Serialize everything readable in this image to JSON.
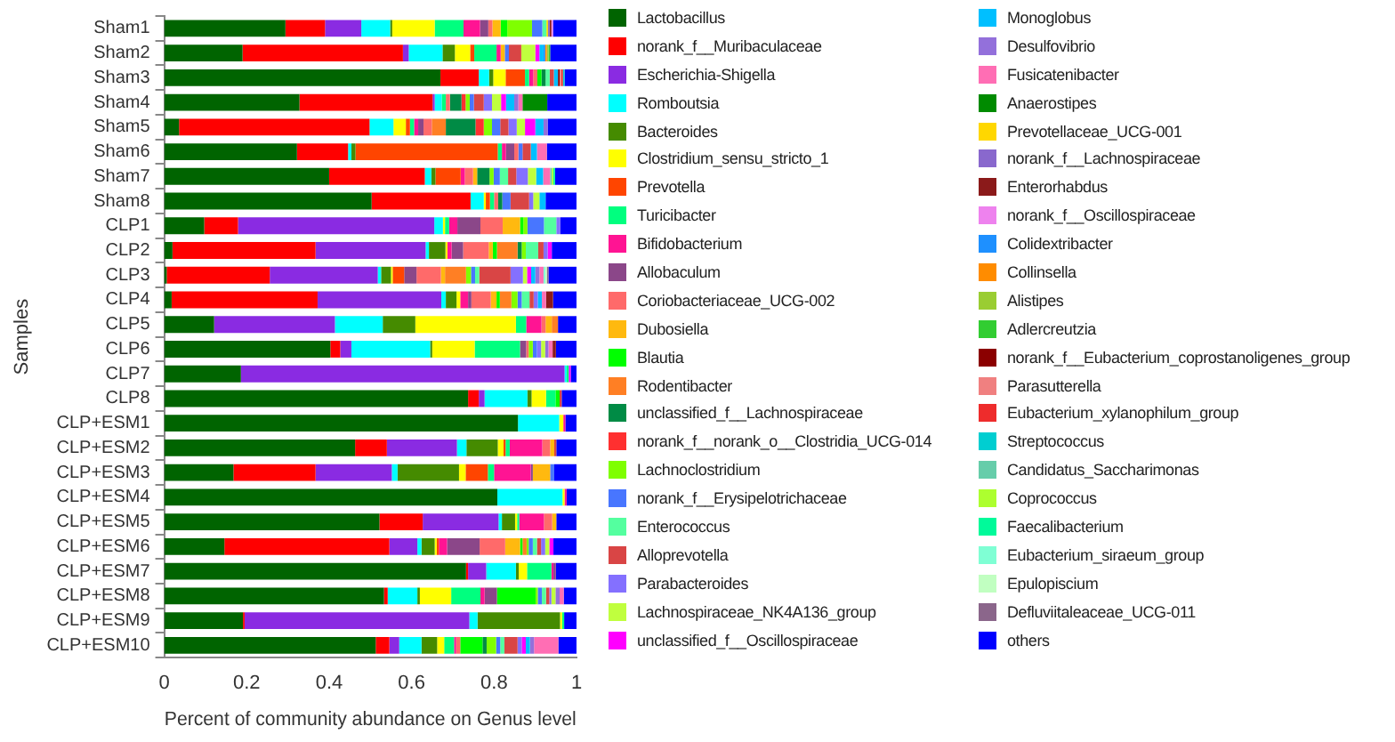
{
  "chart_data": {
    "type": "bar",
    "orientation": "horizontal",
    "stacked": true,
    "xlabel": "Percent of community abundance on Genus level",
    "ylabel": "Samples",
    "xlim": [
      0,
      1
    ],
    "xticks": [
      0,
      0.2,
      0.4,
      0.6,
      0.8,
      1
    ],
    "grid": false,
    "legend": "right",
    "categories": [
      "Sham1",
      "Sham2",
      "Sham3",
      "Sham4",
      "Sham5",
      "Sham6",
      "Sham7",
      "Sham8",
      "CLP1",
      "CLP2",
      "CLP3",
      "CLP4",
      "CLP5",
      "CLP6",
      "CLP7",
      "CLP8",
      "CLP+ESM1",
      "CLP+ESM2",
      "CLP+ESM3",
      "CLP+ESM4",
      "CLP+ESM5",
      "CLP+ESM6",
      "CLP+ESM7",
      "CLP+ESM8",
      "CLP+ESM9",
      "CLP+ESM10"
    ],
    "series": [
      {
        "name": "Lactobacillus",
        "color": "#006400",
        "values": [
          0.294,
          0.19,
          0.67,
          0.328,
          0.036,
          0.322,
          0.4,
          0.503,
          0.097,
          0.02,
          0.006,
          0.018,
          0.121,
          0.403,
          0.186,
          0.737,
          0.858,
          0.463,
          0.168,
          0.808,
          0.522,
          0.146,
          0.732,
          0.533,
          0.191,
          0.513
        ]
      },
      {
        "name": "norank_f__Muribaculaceae",
        "color": "#ff0000",
        "values": [
          0.096,
          0.389,
          0.093,
          0.323,
          0.462,
          0.124,
          0.232,
          0.24,
          0.082,
          0.347,
          0.25,
          0.354,
          0,
          0.024,
          0,
          0.026,
          0,
          0.077,
          0.199,
          0,
          0.105,
          0.4,
          0.005,
          0.009,
          0.004,
          0.033
        ]
      },
      {
        "name": "Escherichia-Shigella",
        "color": "#8a2be2",
        "values": [
          0.088,
          0.014,
          0,
          0.005,
          0,
          0,
          0,
          0,
          0.476,
          0.267,
          0.262,
          0.3,
          0.293,
          0.027,
          0.785,
          0.014,
          0,
          0.17,
          0.185,
          0,
          0.184,
          0.068,
          0.044,
          0,
          0.545,
          0.024
        ]
      },
      {
        "name": "Romboutsia",
        "color": "#00ffff",
        "values": [
          0.07,
          0.082,
          0.025,
          0.017,
          0.058,
          0.008,
          0.016,
          0.032,
          0.021,
          0.008,
          0.008,
          0.011,
          0.116,
          0.191,
          0.005,
          0.104,
          0.1,
          0.023,
          0.014,
          0.158,
          0.008,
          0.01,
          0.072,
          0.072,
          0.02,
          0.054
        ]
      },
      {
        "name": "Bacteroides",
        "color": "#458b00",
        "values": [
          0.005,
          0.03,
          0.01,
          0,
          0,
          0.01,
          0.01,
          0,
          0,
          0.04,
          0.024,
          0.026,
          0.079,
          0.005,
          0,
          0.01,
          0,
          0.076,
          0.149,
          0,
          0.032,
          0.032,
          0.007,
          0.006,
          0.2,
          0.038
        ]
      },
      {
        "name": "Clostridium_sensu_stricto_1",
        "color": "#ffff00",
        "values": [
          0.103,
          0.037,
          0.03,
          0,
          0.03,
          0,
          0,
          0.005,
          0.005,
          0.005,
          0.004,
          0.009,
          0.244,
          0.103,
          0,
          0.035,
          0.01,
          0.014,
          0.016,
          0.005,
          0.005,
          0.005,
          0.02,
          0.076,
          0.005,
          0.017
        ]
      },
      {
        "name": "Prevotella",
        "color": "#ff4500",
        "values": [
          0,
          0.01,
          0.047,
          0,
          0.01,
          0.345,
          0.061,
          0.01,
          0,
          0,
          0.028,
          0,
          0,
          0,
          0,
          0,
          0,
          0.005,
          0.054,
          0,
          0,
          0.005,
          0,
          0,
          0,
          0
        ]
      },
      {
        "name": "Turicibacter",
        "color": "#00ff7f",
        "values": [
          0.07,
          0.054,
          0.01,
          0.01,
          0.01,
          0.01,
          0,
          0.01,
          0.01,
          0,
          0,
          0,
          0.025,
          0.11,
          0.005,
          0.023,
          0,
          0.01,
          0.015,
          0,
          0.005,
          0,
          0.059,
          0.071,
          0.005,
          0.024
        ]
      },
      {
        "name": "Bifidobacterium",
        "color": "#ff1493",
        "values": [
          0.04,
          0.01,
          0.01,
          0,
          0.01,
          0.01,
          0.01,
          0,
          0.02,
          0.01,
          0,
          0.019,
          0.037,
          0,
          0,
          0,
          0.005,
          0.079,
          0.089,
          0.005,
          0.06,
          0.02,
          0.005,
          0.01,
          0,
          0.005
        ]
      },
      {
        "name": "Allobaculum",
        "color": "#8b4789",
        "values": [
          0.02,
          0,
          0,
          0,
          0.013,
          0.02,
          0,
          0,
          0.056,
          0.028,
          0.03,
          0.008,
          0,
          0.015,
          0,
          0,
          0,
          0,
          0.005,
          0,
          0,
          0.079,
          0.006,
          0.03,
          0,
          0
        ]
      },
      {
        "name": "Coriobacteriaceae_UCG-002",
        "color": "#ff6a6a",
        "values": [
          0.01,
          0,
          0.01,
          0.01,
          0.02,
          0.01,
          0.02,
          0.01,
          0.054,
          0.062,
          0.059,
          0.047,
          0.01,
          0.006,
          0,
          0,
          0,
          0.019,
          0,
          0,
          0.02,
          0.062,
          0,
          0,
          0,
          0.01
        ]
      },
      {
        "name": "Dubosiella",
        "color": "#ffb90f",
        "values": [
          0.02,
          0.01,
          0,
          0,
          0,
          0,
          0.01,
          0,
          0.042,
          0.01,
          0.01,
          0.014,
          0.015,
          0,
          0,
          0,
          0,
          0.01,
          0.042,
          0,
          0.01,
          0.036,
          0,
          0,
          0,
          0
        ]
      },
      {
        "name": "Blautia",
        "color": "#00ff00",
        "values": [
          0.016,
          0,
          0.01,
          0,
          0,
          0,
          0,
          0,
          0.008,
          0.01,
          0,
          0.008,
          0,
          0,
          0,
          0.01,
          0,
          0,
          0,
          0,
          0,
          0.006,
          0,
          0.094,
          0,
          0.054
        ]
      },
      {
        "name": "Rodentibacter",
        "color": "#ff7f24",
        "values": [
          0,
          0,
          0,
          0,
          0.034,
          0,
          0,
          0,
          0,
          0.05,
          0.051,
          0.028,
          0.015,
          0,
          0,
          0,
          0,
          0,
          0,
          0,
          0,
          0.01,
          0,
          0,
          0,
          0
        ]
      },
      {
        "name": "unclassified_f__Lachnospiraceae",
        "color": "#008b45",
        "values": [
          0,
          0,
          0.01,
          0.028,
          0.072,
          0,
          0.03,
          0.01,
          0,
          0.01,
          0,
          0,
          0,
          0,
          0,
          0,
          0,
          0,
          0,
          0,
          0,
          0,
          0,
          0,
          0,
          0.01
        ]
      },
      {
        "name": "norank_f__norank_o__Clostridia_UCG-014",
        "color": "#ff3030",
        "values": [
          0,
          0,
          0,
          0.01,
          0.02,
          0,
          0,
          0,
          0,
          0,
          0,
          0,
          0,
          0,
          0,
          0,
          0,
          0,
          0,
          0,
          0,
          0,
          0,
          0,
          0,
          0
        ]
      },
      {
        "name": "Lachnoclostridium",
        "color": "#7fff00",
        "values": [
          0.06,
          0,
          0,
          0.01,
          0.02,
          0,
          0.01,
          0,
          0.01,
          0.01,
          0.012,
          0.015,
          0,
          0.01,
          0,
          0,
          0,
          0,
          0,
          0,
          0,
          0.005,
          0,
          0.005,
          0,
          0.023
        ]
      },
      {
        "name": "norank_f__Erysipelotrichaceae",
        "color": "#4876ff",
        "values": [
          0.025,
          0.01,
          0,
          0.01,
          0.02,
          0.01,
          0.015,
          0.02,
          0.04,
          0,
          0.01,
          0.01,
          0,
          0.01,
          0,
          0,
          0,
          0,
          0.01,
          0,
          0,
          0.01,
          0,
          0.01,
          0,
          0.01
        ]
      },
      {
        "name": "Enterococcus",
        "color": "#54ff9f",
        "values": [
          0.01,
          0,
          0.01,
          0,
          0,
          0,
          0.02,
          0,
          0.03,
          0.03,
          0.01,
          0.019,
          0,
          0,
          0,
          0,
          0,
          0,
          0,
          0,
          0,
          0.01,
          0,
          0.01,
          0,
          0.01
        ]
      },
      {
        "name": "Alloprevotella",
        "color": "#d94545",
        "values": [
          0,
          0.03,
          0.01,
          0.024,
          0.02,
          0.02,
          0.02,
          0.045,
          0,
          0.013,
          0.076,
          0.01,
          0,
          0,
          0,
          0.005,
          0,
          0.005,
          0,
          0,
          0,
          0.01,
          0,
          0.008,
          0,
          0.032
        ]
      },
      {
        "name": "Parabacteroides",
        "color": "#8470ff",
        "values": [
          0,
          0,
          0,
          0.02,
          0.02,
          0,
          0.028,
          0.01,
          0.01,
          0.01,
          0.03,
          0.01,
          0,
          0.01,
          0,
          0,
          0,
          0,
          0,
          0,
          0,
          0.01,
          0,
          0.005,
          0,
          0.01
        ]
      },
      {
        "name": "Lachnospiraceae_NK4A136_group",
        "color": "#c0ff3e",
        "values": [
          0,
          0.034,
          0,
          0.022,
          0.02,
          0,
          0.02,
          0.015,
          0,
          0,
          0.01,
          0,
          0,
          0.01,
          0,
          0,
          0,
          0,
          0,
          0,
          0,
          0.01,
          0,
          0.01,
          0,
          0
        ]
      },
      {
        "name": "unclassified_f__Oscillospiraceae",
        "color": "#ff00ff",
        "values": [
          0,
          0.01,
          0,
          0.012,
          0.025,
          0,
          0,
          0,
          0,
          0.01,
          0.01,
          0,
          0,
          0,
          0.005,
          0,
          0,
          0,
          0,
          0,
          0,
          0.01,
          0,
          0,
          0,
          0.01
        ]
      },
      {
        "name": "Monoglobus",
        "color": "#00bfff",
        "values": [
          0,
          0.01,
          0.01,
          0.02,
          0.02,
          0.015,
          0.017,
          0.015,
          0,
          0,
          0.01,
          0.01,
          0,
          0,
          0,
          0,
          0,
          0,
          0,
          0,
          0,
          0,
          0,
          0,
          0,
          0.01
        ]
      },
      {
        "name": "Desulfovibrio",
        "color": "#9370db",
        "values": [
          0,
          0,
          0,
          0.01,
          0.01,
          0,
          0,
          0,
          0,
          0,
          0.01,
          0,
          0,
          0.008,
          0,
          0,
          0,
          0,
          0,
          0,
          0,
          0,
          0,
          0.01,
          0,
          0.01
        ]
      },
      {
        "name": "Fusicatenibacter",
        "color": "#ff6eb4",
        "values": [
          0,
          0,
          0,
          0.01,
          0,
          0.024,
          0.017,
          0,
          0,
          0,
          0.01,
          0.01,
          0,
          0.01,
          0,
          0,
          0,
          0,
          0,
          0,
          0,
          0,
          0,
          0.01,
          0,
          0.059
        ]
      },
      {
        "name": "Anaerostipes",
        "color": "#008b00",
        "values": [
          0,
          0,
          0,
          0.06,
          0,
          0,
          0,
          0,
          0,
          0,
          0,
          0,
          0,
          0,
          0,
          0,
          0,
          0,
          0,
          0,
          0,
          0,
          0,
          0,
          0,
          0
        ]
      },
      {
        "name": "Prevotellaceae_UCG-001",
        "color": "#ffd700",
        "values": [
          0.004,
          0,
          0,
          0,
          0,
          0,
          0,
          0,
          0,
          0,
          0,
          0,
          0,
          0,
          0,
          0,
          0,
          0,
          0,
          0,
          0,
          0,
          0,
          0,
          0,
          0
        ]
      },
      {
        "name": "norank_f__Lachnospiraceae",
        "color": "#8968cd",
        "values": [
          0.004,
          0,
          0,
          0,
          0,
          0,
          0,
          0,
          0,
          0,
          0,
          0,
          0,
          0,
          0,
          0,
          0,
          0,
          0,
          0,
          0,
          0,
          0,
          0,
          0,
          0
        ]
      },
      {
        "name": "Enterorhabdus",
        "color": "#8b1a1a",
        "values": [
          0.004,
          0,
          0,
          0,
          0,
          0,
          0,
          0,
          0,
          0,
          0,
          0.017,
          0,
          0.008,
          0,
          0,
          0,
          0,
          0,
          0,
          0,
          0,
          0,
          0,
          0,
          0
        ]
      },
      {
        "name": "norank_f__Oscillospiraceae",
        "color": "#ee82ee",
        "values": [
          0.004,
          0,
          0,
          0,
          0,
          0,
          0,
          0,
          0,
          0,
          0,
          0,
          0,
          0,
          0,
          0,
          0,
          0,
          0,
          0,
          0,
          0,
          0,
          0,
          0,
          0
        ]
      },
      {
        "name": "Colidextribacter",
        "color": "#1e90ff",
        "values": [
          0,
          0.004,
          0,
          0,
          0,
          0,
          0,
          0,
          0,
          0,
          0,
          0,
          0,
          0,
          0,
          0,
          0,
          0,
          0,
          0,
          0,
          0,
          0,
          0,
          0,
          0
        ]
      },
      {
        "name": "Collinsella",
        "color": "#ff8c00",
        "values": [
          0,
          0.004,
          0,
          0,
          0,
          0,
          0,
          0,
          0,
          0,
          0,
          0,
          0,
          0,
          0,
          0,
          0,
          0,
          0,
          0,
          0,
          0,
          0,
          0,
          0,
          0
        ]
      },
      {
        "name": "Alistipes",
        "color": "#9acd32",
        "values": [
          0,
          0.004,
          0,
          0,
          0,
          0,
          0,
          0,
          0,
          0,
          0,
          0,
          0,
          0,
          0,
          0,
          0,
          0,
          0,
          0,
          0,
          0,
          0,
          0,
          0,
          0
        ]
      },
      {
        "name": "Adlercreutzia",
        "color": "#32cd32",
        "values": [
          0,
          0.004,
          0,
          0,
          0,
          0,
          0,
          0,
          0,
          0,
          0,
          0,
          0,
          0,
          0,
          0,
          0,
          0,
          0,
          0,
          0,
          0,
          0,
          0,
          0,
          0
        ]
      },
      {
        "name": "norank_f__Eubacterium_coprostanoligenes_group",
        "color": "#8b0000",
        "values": [
          0,
          0,
          0.004,
          0,
          0,
          0,
          0,
          0,
          0,
          0,
          0,
          0,
          0,
          0,
          0,
          0,
          0,
          0,
          0,
          0,
          0,
          0,
          0,
          0,
          0,
          0
        ]
      },
      {
        "name": "Parasutterella",
        "color": "#f08080",
        "values": [
          0,
          0,
          0.004,
          0,
          0,
          0,
          0,
          0,
          0,
          0,
          0,
          0,
          0,
          0,
          0,
          0,
          0,
          0,
          0,
          0,
          0,
          0,
          0,
          0,
          0,
          0
        ]
      },
      {
        "name": "Eubacterium_xylanophilum_group",
        "color": "#ee2c2c",
        "values": [
          0,
          0,
          0.004,
          0,
          0,
          0,
          0,
          0,
          0,
          0,
          0,
          0,
          0,
          0,
          0,
          0,
          0,
          0,
          0,
          0,
          0,
          0,
          0,
          0,
          0,
          0
        ]
      },
      {
        "name": "Streptococcus",
        "color": "#00ced1",
        "values": [
          0,
          0,
          0.004,
          0,
          0,
          0,
          0,
          0,
          0,
          0,
          0,
          0,
          0,
          0,
          0,
          0,
          0,
          0,
          0,
          0,
          0,
          0,
          0,
          0,
          0,
          0
        ]
      },
      {
        "name": "Candidatus_Saccharimonas",
        "color": "#66cdaa",
        "values": [
          0,
          0,
          0,
          0,
          0,
          0,
          0.004,
          0,
          0,
          0,
          0,
          0,
          0,
          0,
          0,
          0,
          0,
          0,
          0,
          0,
          0,
          0,
          0,
          0,
          0,
          0
        ]
      },
      {
        "name": "Coprococcus",
        "color": "#adff2f",
        "values": [
          0,
          0,
          0,
          0,
          0,
          0,
          0.004,
          0,
          0,
          0,
          0,
          0,
          0,
          0,
          0,
          0,
          0,
          0,
          0,
          0,
          0,
          0,
          0,
          0,
          0,
          0
        ]
      },
      {
        "name": "Faecalibacterium",
        "color": "#00fa9a",
        "values": [
          0,
          0,
          0,
          0,
          0,
          0,
          0.004,
          0,
          0,
          0,
          0,
          0,
          0,
          0,
          0,
          0,
          0,
          0,
          0,
          0,
          0,
          0,
          0,
          0,
          0,
          0
        ]
      },
      {
        "name": "Eubacterium_siraeum_group",
        "color": "#7fffd4",
        "values": [
          0,
          0,
          0,
          0,
          0,
          0,
          0,
          0,
          0,
          0,
          0.004,
          0,
          0,
          0,
          0,
          0,
          0,
          0,
          0,
          0,
          0,
          0,
          0,
          0,
          0,
          0
        ]
      },
      {
        "name": "Epulopiscium",
        "color": "#c1ffc1",
        "values": [
          0,
          0,
          0,
          0,
          0,
          0,
          0,
          0,
          0,
          0,
          0.004,
          0,
          0,
          0,
          0,
          0,
          0,
          0,
          0,
          0,
          0,
          0,
          0,
          0,
          0,
          0
        ]
      },
      {
        "name": "Defluviitaleaceae_UCG-011",
        "color": "#8b668b",
        "values": [
          0,
          0,
          0,
          0,
          0,
          0,
          0,
          0,
          0,
          0,
          0.004,
          0,
          0,
          0,
          0,
          0,
          0,
          0,
          0,
          0,
          0,
          0,
          0,
          0,
          0,
          0
        ]
      },
      {
        "name": "others",
        "color": "#0000ff",
        "values": [
          0.057,
          0.064,
          0.029,
          0.071,
          0.07,
          0.072,
          0.052,
          0.075,
          0.039,
          0.06,
          0.068,
          0.057,
          0.045,
          0.05,
          0.014,
          0.036,
          0.027,
          0.049,
          0.054,
          0.024,
          0.049,
          0.056,
          0.05,
          0.031,
          0.03,
          0.044
        ]
      }
    ]
  }
}
